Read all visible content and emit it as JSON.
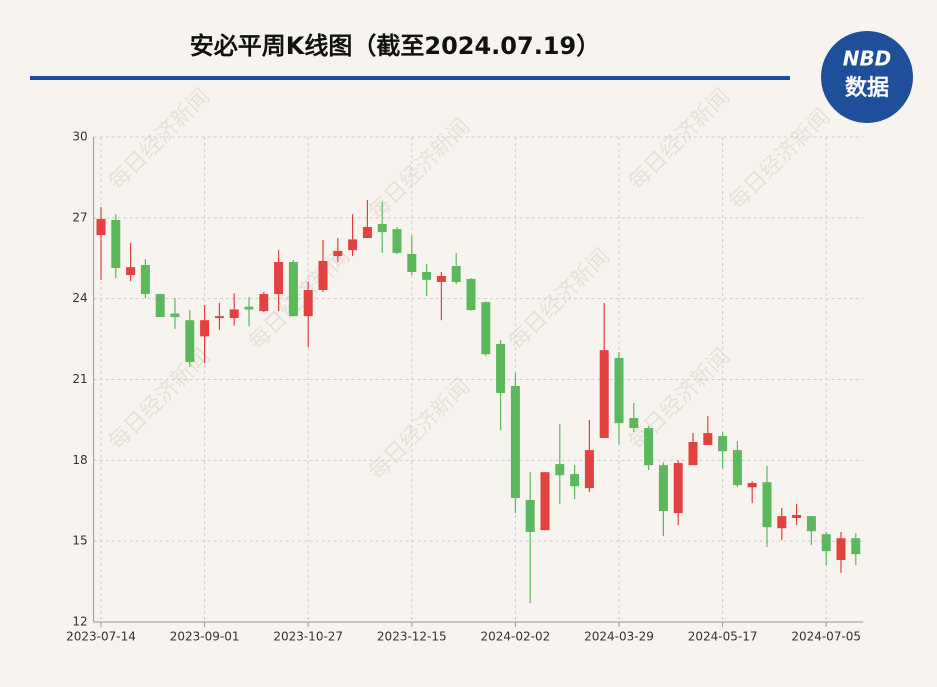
{
  "chart_data": {
    "type": "candlestick",
    "title": "安必平周K线图（截至2024.07.19）",
    "logo": {
      "top": "NBD",
      "bottom": "数据"
    },
    "watermark": "每日经济新闻",
    "categories": [
      "2023-07-14",
      null,
      null,
      null,
      null,
      null,
      null,
      "2023-09-01",
      null,
      null,
      null,
      null,
      null,
      null,
      "2023-10-27",
      null,
      null,
      null,
      null,
      null,
      null,
      "2023-12-15",
      null,
      null,
      null,
      null,
      null,
      null,
      "2024-02-02",
      null,
      null,
      null,
      null,
      null,
      null,
      "2024-03-29",
      null,
      null,
      null,
      null,
      null,
      null,
      "2024-05-17",
      null,
      null,
      null,
      null,
      null,
      null,
      "2024-07-05",
      null,
      null
    ],
    "series": [
      {
        "name": "安必平",
        "up_color": "#e2413f",
        "down_color": "#5cb85c",
        "open": [
          26.36,
          26.92,
          24.88,
          25.25,
          24.17,
          23.45,
          23.2,
          22.6,
          23.28,
          23.28,
          23.7,
          23.54,
          24.17,
          25.36,
          23.35,
          24.32,
          25.58,
          25.8,
          26.25,
          26.77,
          26.58,
          25.66,
          24.99,
          24.62,
          25.21,
          24.73,
          23.87,
          22.32,
          20.76,
          16.53,
          15.41,
          17.86,
          17.49,
          16.97,
          18.83,
          21.8,
          19.57,
          19.2,
          17.82,
          16.04,
          17.82,
          18.57,
          18.9,
          18.38,
          17.0,
          17.19,
          15.48,
          15.86,
          15.93,
          15.26,
          14.3,
          15.11
        ],
        "high": [
          27.4,
          27.14,
          26.07,
          25.47,
          24.17,
          24.02,
          23.58,
          23.76,
          23.84,
          24.2,
          24.06,
          24.25,
          25.8,
          25.43,
          24.62,
          26.18,
          26.25,
          27.14,
          27.66,
          27.59,
          26.66,
          26.33,
          25.29,
          24.99,
          25.7,
          24.77,
          23.9,
          22.46,
          21.24,
          17.56,
          17.56,
          19.35,
          17.82,
          19.5,
          23.84,
          22.02,
          20.13,
          19.27,
          17.93,
          18.0,
          19.01,
          19.64,
          19.05,
          18.72,
          17.23,
          17.79,
          16.23,
          16.38,
          15.93,
          15.34,
          15.34,
          15.3
        ],
        "low": [
          24.7,
          24.77,
          24.65,
          24.02,
          23.32,
          22.87,
          21.46,
          21.6,
          22.84,
          23.0,
          22.98,
          23.5,
          23.54,
          23.35,
          22.2,
          24.25,
          25.36,
          25.58,
          26.25,
          25.7,
          25.66,
          24.88,
          24.1,
          23.2,
          24.54,
          23.55,
          21.87,
          19.12,
          16.04,
          12.7,
          15.41,
          16.38,
          16.56,
          16.82,
          18.83,
          18.6,
          19.05,
          17.64,
          15.19,
          15.6,
          17.82,
          18.57,
          17.71,
          17.0,
          16.41,
          14.78,
          15.04,
          15.6,
          14.86,
          14.11,
          13.82,
          14.11
        ],
        "close": [
          26.96,
          25.14,
          25.17,
          24.17,
          23.32,
          23.32,
          21.65,
          23.2,
          23.35,
          23.6,
          23.6,
          24.17,
          25.36,
          23.35,
          24.32,
          25.4,
          25.77,
          26.2,
          26.66,
          26.47,
          25.7,
          24.99,
          24.7,
          24.84,
          24.62,
          23.58,
          21.94,
          20.5,
          16.6,
          15.34,
          17.56,
          17.45,
          17.04,
          18.38,
          22.09,
          19.38,
          19.2,
          17.82,
          16.12,
          17.9,
          18.68,
          19.01,
          18.34,
          17.08,
          17.16,
          15.52,
          15.93,
          15.97,
          15.37,
          14.63,
          15.11,
          14.52
        ]
      }
    ],
    "ylim": [
      12,
      30
    ],
    "yticks": [
      12,
      15,
      18,
      21,
      24,
      27,
      30
    ],
    "grid": true
  }
}
